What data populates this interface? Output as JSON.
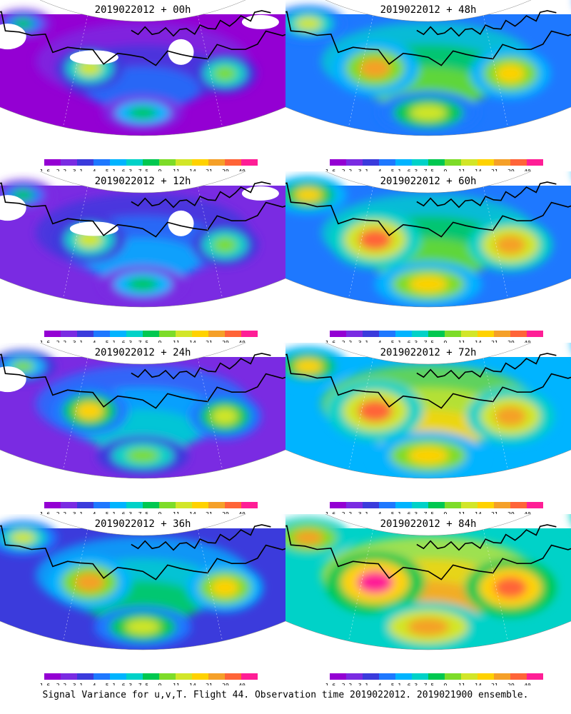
{
  "chart_data": {
    "type": "heatmap",
    "description_panels": [
      {
        "title": "2019022012 + 00h",
        "intensity": 0.0
      },
      {
        "title": "2019022012 + 12h",
        "intensity": 0.12
      },
      {
        "title": "2019022012 + 24h",
        "intensity": 0.28
      },
      {
        "title": "2019022012 + 36h",
        "intensity": 0.42
      },
      {
        "title": "2019022012 + 48h",
        "intensity": 0.55
      },
      {
        "title": "2019022012 + 60h",
        "intensity": 0.68
      },
      {
        "title": "2019022012 + 72h",
        "intensity": 0.8
      },
      {
        "title": "2019022012 + 84h",
        "intensity": 0.92
      }
    ],
    "colorbar": {
      "levels": [
        "1.6",
        "2.2",
        "3.1",
        "4",
        "5.1",
        "6.3",
        "7.5",
        "9",
        "11",
        "14",
        "21",
        "29",
        "40"
      ],
      "colors": [
        "#9400d3",
        "#7a2be2",
        "#3b3bdc",
        "#1e78ff",
        "#00b4ff",
        "#00d2c8",
        "#00c850",
        "#7ddc28",
        "#d2e628",
        "#ffd200",
        "#f5a028",
        "#ff6438",
        "#ff1e96"
      ]
    }
  },
  "footer": "Signal Variance for u,v,T. Flight 44. Observation time 2019022012. 2019021900 ensemble."
}
